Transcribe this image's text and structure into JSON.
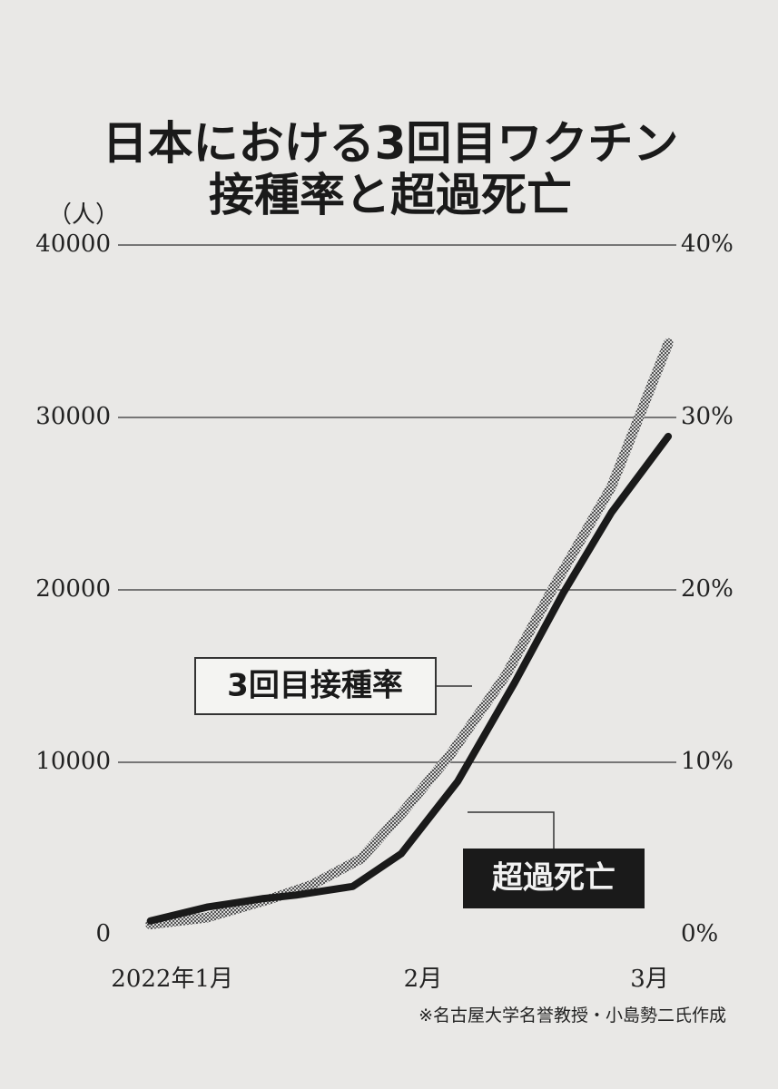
{
  "chart_data": {
    "type": "line",
    "title": "日本における3回目ワクチン",
    "subtitle": "接種率と超過死亡",
    "y_label": "（人）",
    "source": "※名古屋大学名誉教授・小島勢二氏作成",
    "xlim": [
      -4,
      65
    ],
    "xticks": [
      {
        "value": 0,
        "label": "2022年1月"
      },
      {
        "value": 31,
        "label": "2月"
      },
      {
        "value": 59,
        "label": "3月"
      }
    ],
    "ylim": [
      0,
      40000
    ],
    "yticks": [
      0,
      10000,
      20000,
      30000,
      40000
    ],
    "y2lim": [
      0,
      40
    ],
    "y2ticks": [
      {
        "value": 0,
        "label": "0%"
      },
      {
        "value": 10,
        "label": "10%"
      },
      {
        "value": 20,
        "label": "20%"
      },
      {
        "value": 30,
        "label": "30%"
      },
      {
        "value": 40,
        "label": "40%"
      }
    ],
    "grid": true,
    "series": [
      {
        "name": "超過死亡",
        "color": "#1a1a1a",
        "x": [
          0,
          7,
          14,
          18,
          25,
          31,
          38,
          45,
          51,
          57,
          64
        ],
        "values": [
          800,
          1600,
          2100,
          2300,
          2800,
          4700,
          8900,
          14600,
          19800,
          24500,
          28900
        ]
      },
      {
        "name": "3回目接種率",
        "color": "#8a8a8a",
        "axis": "y2",
        "x": [
          0,
          7,
          15,
          20,
          26,
          31,
          37,
          44,
          50,
          57,
          64
        ],
        "values": [
          0.6,
          1.0,
          2.1,
          2.9,
          4.4,
          7.0,
          10.4,
          15.1,
          20.3,
          26.0,
          34.3
        ]
      }
    ]
  }
}
